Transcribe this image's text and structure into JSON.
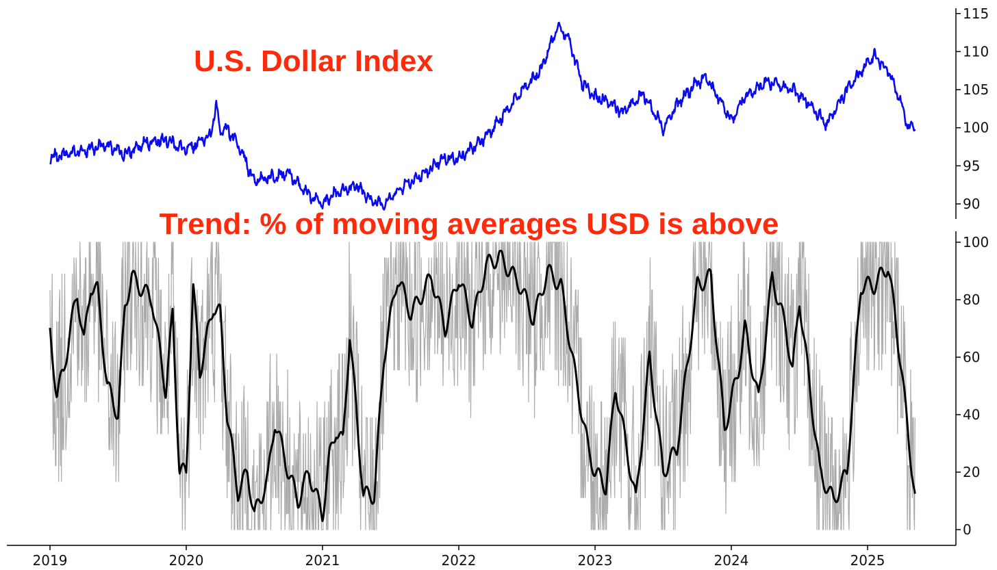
{
  "colors": {
    "title": "#ff2a0a",
    "dxy_line": "#0a0aee",
    "trend_raw": "#aaaaaa",
    "trend_smooth": "#000000",
    "axis": "#000000"
  },
  "x_axis": {
    "ticks": [
      "2019",
      "2020",
      "2021",
      "2022",
      "2023",
      "2024",
      "2025"
    ]
  },
  "chart_data": [
    {
      "type": "line",
      "title": "U.S. Dollar Index",
      "ylim": [
        88.5,
        115.5
      ],
      "y_ticks": [
        90,
        95,
        100,
        105,
        110,
        115
      ],
      "y_tick_labels": [
        "90",
        "95",
        "100",
        "105",
        "110",
        "115"
      ],
      "y_axis_side": "right",
      "grid": false,
      "series": [
        {
          "x": [
            2019.0,
            2019.1,
            2019.25,
            2019.4,
            2019.55,
            2019.7,
            2019.85,
            2020.0,
            2020.12,
            2020.18,
            2020.22,
            2020.25,
            2020.3,
            2020.4,
            2020.5,
            2020.6,
            2020.75,
            2020.85,
            2021.0,
            2021.1,
            2021.25,
            2021.35,
            2021.45,
            2021.6,
            2021.75,
            2021.9,
            2022.0,
            2022.15,
            2022.3,
            2022.45,
            2022.6,
            2022.73,
            2022.8,
            2022.9,
            2023.0,
            2023.1,
            2023.2,
            2023.35,
            2023.5,
            2023.6,
            2023.75,
            2023.82,
            2024.0,
            2024.1,
            2024.25,
            2024.45,
            2024.55,
            2024.7,
            2024.85,
            2025.0,
            2025.05,
            2025.15,
            2025.25,
            2025.3,
            2025.35
          ],
          "values": [
            96.0,
            96.5,
            97.0,
            97.8,
            96.5,
            98.0,
            98.5,
            97.0,
            98.5,
            99.0,
            103.0,
            99.5,
            100.0,
            97.0,
            93.0,
            93.5,
            94.0,
            92.0,
            90.0,
            91.5,
            92.5,
            90.5,
            90.0,
            92.5,
            94.0,
            96.0,
            96.0,
            98.0,
            101.0,
            104.5,
            107.5,
            113.5,
            112.0,
            106.0,
            104.0,
            103.5,
            102.0,
            104.5,
            100.0,
            103.0,
            106.0,
            106.5,
            101.0,
            104.0,
            106.0,
            105.0,
            103.5,
            100.5,
            105.0,
            108.5,
            109.5,
            107.5,
            103.0,
            100.0,
            100.0
          ]
        }
      ]
    },
    {
      "type": "line",
      "title": "Trend: % of moving averages USD is above",
      "ylim": [
        -5,
        103
      ],
      "y_ticks": [
        0,
        20,
        40,
        60,
        80,
        100
      ],
      "y_tick_labels": [
        "0",
        "20",
        "40",
        "60",
        "80",
        "100"
      ],
      "y_axis_side": "right",
      "grid": false,
      "series": [
        {
          "x": [
            2019.0,
            2019.05,
            2019.1,
            2019.15,
            2019.2,
            2019.25,
            2019.3,
            2019.35,
            2019.42,
            2019.5,
            2019.55,
            2019.6,
            2019.65,
            2019.75,
            2019.85,
            2019.9,
            2019.95,
            2020.0,
            2020.05,
            2020.1,
            2020.2,
            2020.25,
            2020.3,
            2020.38,
            2020.45,
            2020.5,
            2020.6,
            2020.65,
            2020.75,
            2020.82,
            2020.9,
            2021.0,
            2021.05,
            2021.1,
            2021.15,
            2021.2,
            2021.3,
            2021.38,
            2021.45,
            2021.55,
            2021.65,
            2021.8,
            2021.9,
            2022.0,
            2022.1,
            2022.2,
            2022.3,
            2022.45,
            2022.55,
            2022.65,
            2022.75,
            2022.85,
            2022.95,
            2023.0,
            2023.08,
            2023.15,
            2023.3,
            2023.4,
            2023.5,
            2023.6,
            2023.75,
            2023.85,
            2023.95,
            2024.05,
            2024.1,
            2024.2,
            2024.3,
            2024.4,
            2024.45,
            2024.5,
            2024.65,
            2024.75,
            2024.85,
            2024.95,
            2025.05,
            2025.15,
            2025.2,
            2025.25,
            2025.35
          ],
          "values": [
            68,
            47,
            55,
            70,
            82,
            65,
            85,
            83,
            50,
            40,
            78,
            88,
            85,
            80,
            48,
            75,
            20,
            20,
            85,
            55,
            78,
            75,
            40,
            13,
            20,
            5,
            18,
            38,
            20,
            10,
            20,
            5,
            25,
            35,
            30,
            68,
            12,
            12,
            60,
            88,
            75,
            88,
            70,
            88,
            72,
            92,
            95,
            85,
            73,
            90,
            85,
            55,
            28,
            20,
            15,
            50,
            10,
            60,
            20,
            28,
            85,
            88,
            35,
            55,
            70,
            45,
            88,
            70,
            55,
            80,
            20,
            10,
            20,
            85,
            85,
            92,
            75,
            55,
            10
          ]
        }
      ]
    }
  ]
}
